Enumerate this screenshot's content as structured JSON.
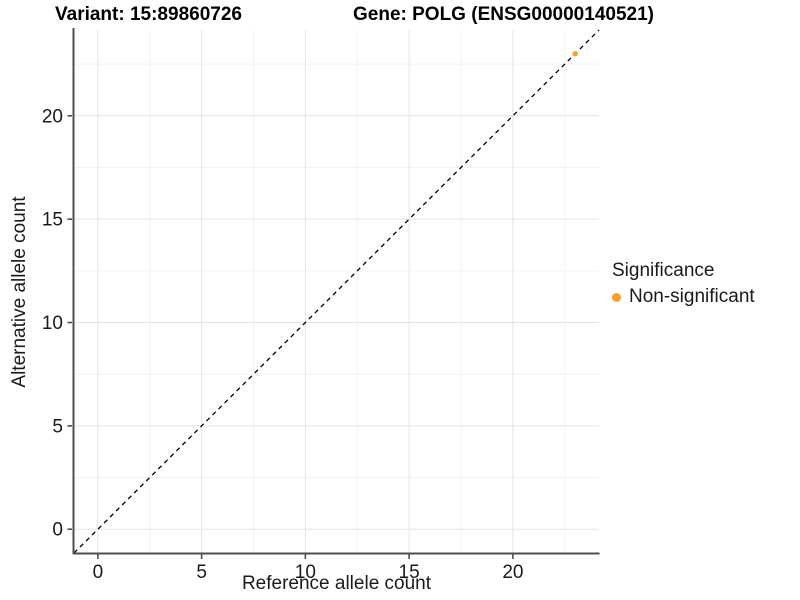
{
  "titles": {
    "variant": "Variant: 15:89860726",
    "gene": "Gene: POLG (ENSG00000140521)"
  },
  "axes": {
    "x": {
      "label": "Reference allele count",
      "ticks": [
        0,
        5,
        10,
        15,
        20
      ],
      "minor_ticks": [
        2.5,
        7.5,
        12.5,
        17.5,
        22.5
      ],
      "range": [
        -1.15,
        24.15
      ]
    },
    "y": {
      "label": "Alternative allele count",
      "ticks": [
        0,
        5,
        10,
        15,
        20
      ],
      "minor_ticks": [
        2.5,
        7.5,
        12.5,
        17.5,
        22.5
      ],
      "range": [
        -1.15,
        24.15
      ]
    }
  },
  "legend": {
    "title": "Significance",
    "items": [
      {
        "label": "Non-significant",
        "color": "#F9A02B"
      }
    ]
  },
  "chart_data": {
    "type": "scatter",
    "title": "Variant: 15:89860726 | Gene: POLG (ENSG00000140521)",
    "xlabel": "Reference allele count",
    "ylabel": "Alternative allele count",
    "xlim": [
      -1.15,
      24.15
    ],
    "ylim": [
      -1.15,
      24.15
    ],
    "grid": true,
    "legend_position": "right",
    "series": [
      {
        "name": "Non-significant",
        "color": "#F9A02B",
        "points": [
          [
            23,
            23
          ]
        ]
      }
    ],
    "reference_line": {
      "type": "identity y=x",
      "style": "dashed",
      "color": "#000000"
    }
  },
  "colors": {
    "point": "#F9A02B",
    "axis_line": "#4D4D4D",
    "grid_major": "#E4E4E4",
    "grid_minor": "#F2F2F2",
    "dash_line": "#000000",
    "text": "#1A1A1A"
  }
}
